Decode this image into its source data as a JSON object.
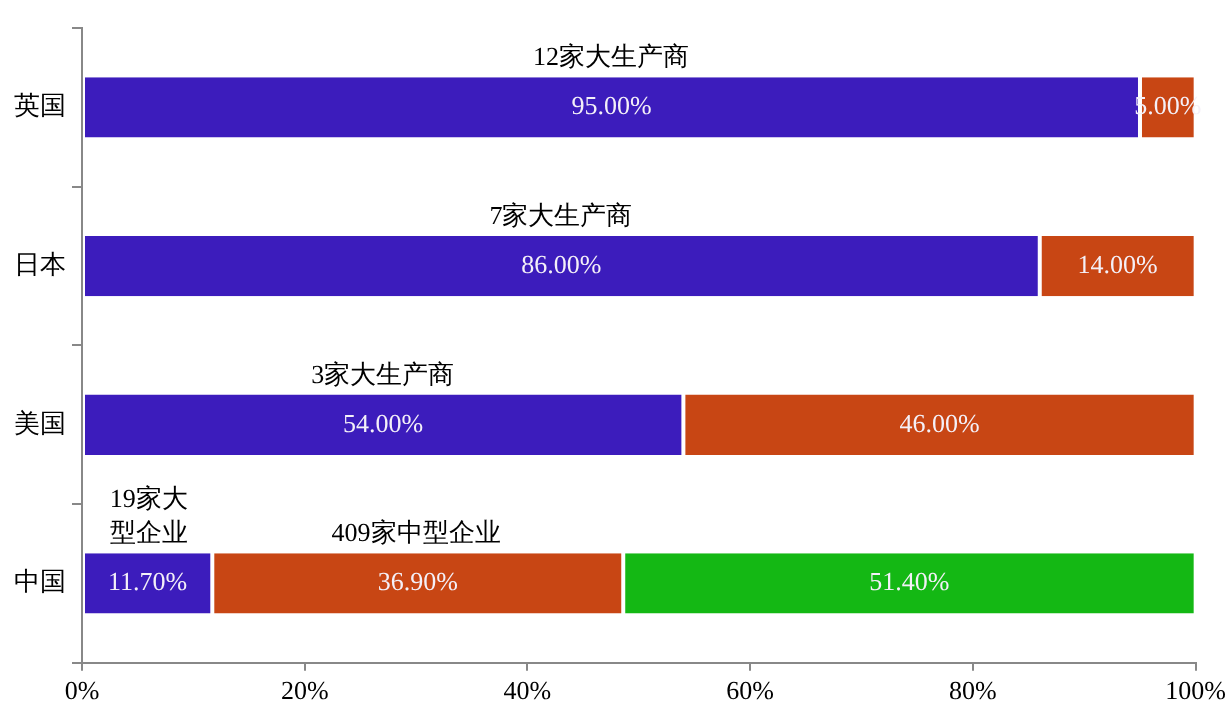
{
  "chart_data": {
    "type": "bar",
    "orientation": "horizontal",
    "stacked": true,
    "categories": [
      "英国",
      "日本",
      "美国",
      "中国"
    ],
    "series": [
      {
        "color": "#3c1cbc",
        "values": [
          95,
          86,
          54,
          11.7
        ],
        "value_labels": [
          "95.00%",
          "86.00%",
          "54.00%",
          "11.70%"
        ]
      },
      {
        "color": "#c84614",
        "values": [
          5,
          14,
          46,
          36.9
        ],
        "value_labels": [
          "5.00%",
          "14.00%",
          "46.00%",
          "36.90%"
        ]
      },
      {
        "color": "#14b814",
        "values": [
          null,
          null,
          null,
          51.4
        ],
        "value_labels": [
          null,
          null,
          null,
          "51.40%"
        ]
      }
    ],
    "xlim": [
      0,
      100
    ],
    "xticks": [
      {
        "value": 0,
        "label": "0%"
      },
      {
        "value": 20,
        "label": "20%"
      },
      {
        "value": 40,
        "label": "40%"
      },
      {
        "value": 60,
        "label": "60%"
      },
      {
        "value": 80,
        "label": "80%"
      },
      {
        "value": 100,
        "label": "100%"
      }
    ],
    "legend": false,
    "annotations": [
      "12家大生产商",
      "7家大生产商",
      "3家大生产商",
      "19家大型企业",
      "409家中型企业"
    ]
  }
}
